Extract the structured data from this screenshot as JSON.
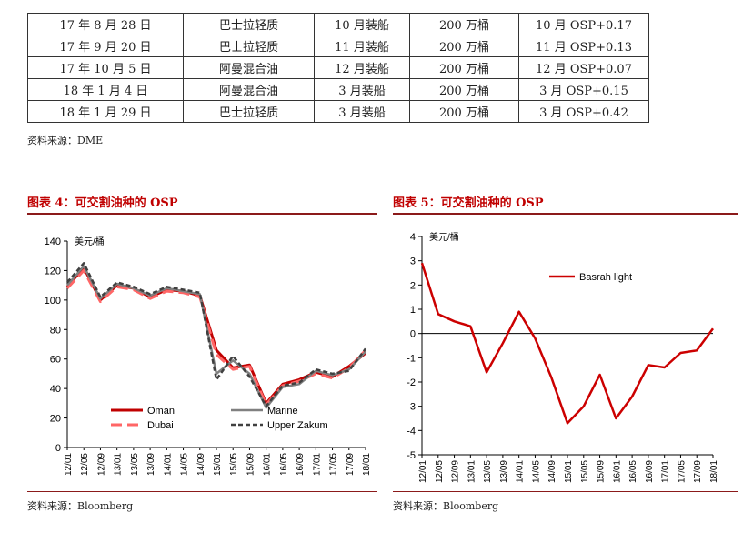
{
  "table": {
    "rows": [
      [
        "17 年 8 月 28 日",
        "巴士拉轻质",
        "10 月装船",
        "200 万桶",
        "10 月 OSP+0.17"
      ],
      [
        "17 年 9 月 20 日",
        "巴士拉轻质",
        "11 月装船",
        "200 万桶",
        "11 月 OSP+0.13"
      ],
      [
        "17 年 10 月 5 日",
        "阿曼混合油",
        "12 月装船",
        "200 万桶",
        "12 月 OSP+0.07"
      ],
      [
        "18 年 1 月 4 日",
        "阿曼混合油",
        "3 月装船",
        "200 万桶",
        "3 月 OSP+0.15"
      ],
      [
        "18 年 1 月 29 日",
        "巴士拉轻质",
        "3 月装船",
        "200 万桶",
        "3 月 OSP+0.42"
      ]
    ],
    "source": "资料来源：DME"
  },
  "figure4": {
    "title": "图表 4：可交割油种的 OSP",
    "source": "资料来源：Bloomberg"
  },
  "figure5": {
    "title": "图表 5：可交割油种的 OSP",
    "source": "资料来源：Bloomberg"
  },
  "colors": {
    "oman": "#c00000",
    "dubai": "#ff6666",
    "marine": "#808080",
    "upper_zakum": "#404040",
    "basrah": "#cc0000",
    "title_red": "#c00000"
  },
  "chart_data": [
    {
      "type": "line",
      "ylabel": "美元/桶",
      "ylim": [
        0,
        140
      ],
      "yticks": [
        0,
        20,
        40,
        60,
        80,
        100,
        120,
        140
      ],
      "x": [
        "12/01",
        "12/05",
        "12/09",
        "13/01",
        "13/05",
        "13/09",
        "14/01",
        "14/05",
        "14/09",
        "15/01",
        "15/05",
        "15/09",
        "16/01",
        "16/05",
        "16/09",
        "17/01",
        "17/05",
        "17/09",
        "18/01"
      ],
      "legend_placement": "bottom",
      "series": [
        {
          "name": "Oman",
          "values": [
            109,
            122,
            100,
            110,
            108,
            102,
            107,
            106,
            103,
            66,
            54,
            56,
            30,
            43,
            46,
            51,
            48,
            55,
            64
          ]
        },
        {
          "name": "Dubai",
          "values": [
            108,
            120,
            99,
            109,
            107,
            101,
            106,
            105,
            102,
            63,
            53,
            55,
            29,
            42,
            45,
            50,
            47,
            54,
            66
          ]
        },
        {
          "name": "Marine",
          "values": [
            110,
            123,
            101,
            111,
            108,
            103,
            108,
            106,
            104,
            50,
            59,
            50,
            27,
            41,
            43,
            52,
            49,
            53,
            65
          ]
        },
        {
          "name": "Upper Zakum",
          "values": [
            112,
            125,
            102,
            112,
            109,
            104,
            109,
            107,
            105,
            46,
            62,
            48,
            28,
            42,
            44,
            53,
            50,
            52,
            67
          ]
        }
      ]
    },
    {
      "type": "line",
      "ylabel": "美元/桶",
      "ylim": [
        -5,
        4
      ],
      "yticks": [
        -5,
        -4,
        -3,
        -2,
        -1,
        0,
        1,
        2,
        3,
        4
      ],
      "x": [
        "12/01",
        "12/05",
        "12/09",
        "13/01",
        "13/05",
        "13/09",
        "14/01",
        "14/05",
        "14/09",
        "15/01",
        "15/05",
        "15/09",
        "16/01",
        "16/05",
        "16/09",
        "17/01",
        "17/05",
        "17/09",
        "18/01"
      ],
      "legend_placement": "top",
      "series": [
        {
          "name": "Basrah light",
          "values": [
            2.9,
            0.8,
            0.5,
            0.3,
            -1.6,
            -0.4,
            0.9,
            -0.2,
            -1.8,
            -3.7,
            -3.0,
            -1.7,
            -3.5,
            -2.6,
            -1.3,
            -1.4,
            -0.8,
            -0.7,
            0.2
          ]
        }
      ]
    }
  ]
}
